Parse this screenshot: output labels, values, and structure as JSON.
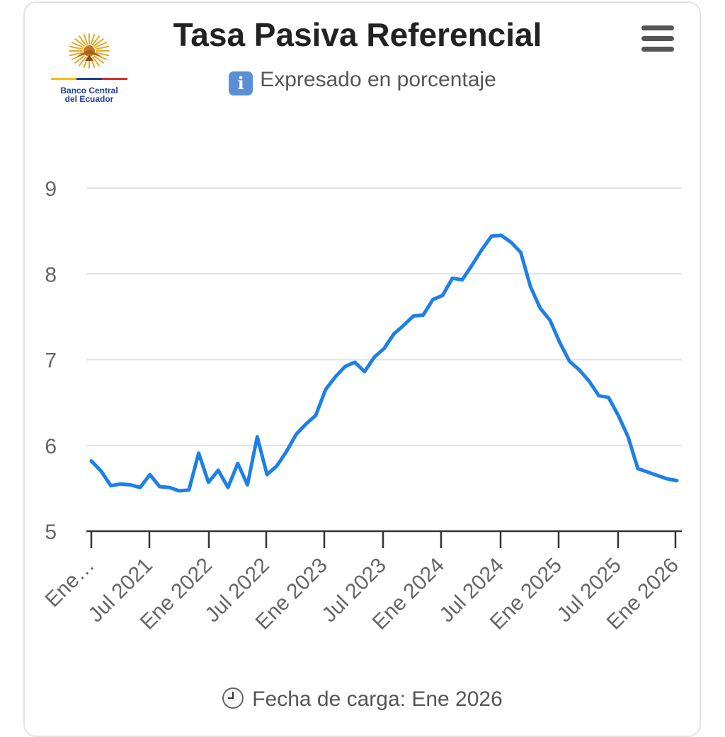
{
  "header": {
    "title": "Tasa Pasiva Referencial",
    "subtitle": "Expresado en porcentaje",
    "logo_text_line1": "Banco Central",
    "logo_text_line2": "del Ecuador",
    "menu_icon": "hamburger-menu-icon",
    "info_icon": "info-icon"
  },
  "footer": {
    "text": "Fecha de carga: Ene 2026",
    "icon": "clock-icon"
  },
  "colors": {
    "line": "#1e7fe8",
    "grid": "#dfe3e6",
    "title": "#222222",
    "logo_blue": "#1c3f8f"
  },
  "chart_data": {
    "type": "line",
    "title": "Tasa Pasiva Referencial",
    "subtitle": "Expresado en porcentaje",
    "ylim": [
      5,
      9
    ],
    "yticks": [
      "5",
      "6",
      "7",
      "8",
      "9"
    ],
    "xlabels": [
      "Ene…",
      "Jul 2021",
      "Ene 2022",
      "Jul 2022",
      "Ene 2023",
      "Jul 2023",
      "Ene 2024",
      "Jul 2024",
      "Ene 2025",
      "Jul 2025",
      "Ene 2026"
    ],
    "grid": true,
    "series": [
      {
        "values": [
          5.82,
          5.7,
          5.53,
          5.55,
          5.54,
          5.51,
          5.66,
          5.52,
          5.51,
          5.47,
          5.48,
          5.91,
          5.57,
          5.71,
          5.51,
          5.79,
          5.54,
          6.1,
          5.66,
          5.76,
          5.93,
          6.13,
          6.25,
          6.35,
          6.65,
          6.8,
          6.92,
          6.97,
          6.86,
          7.03,
          7.13,
          7.3,
          7.4,
          7.51,
          7.52,
          7.7,
          7.75,
          7.95,
          7.93,
          8.1,
          8.28,
          8.44,
          8.45,
          8.37,
          8.25,
          7.85,
          7.6,
          7.46,
          7.2,
          6.98,
          6.88,
          6.75,
          6.58,
          6.56,
          6.35,
          6.1,
          5.73,
          5.69,
          5.65,
          5.61,
          5.59
        ]
      }
    ]
  }
}
